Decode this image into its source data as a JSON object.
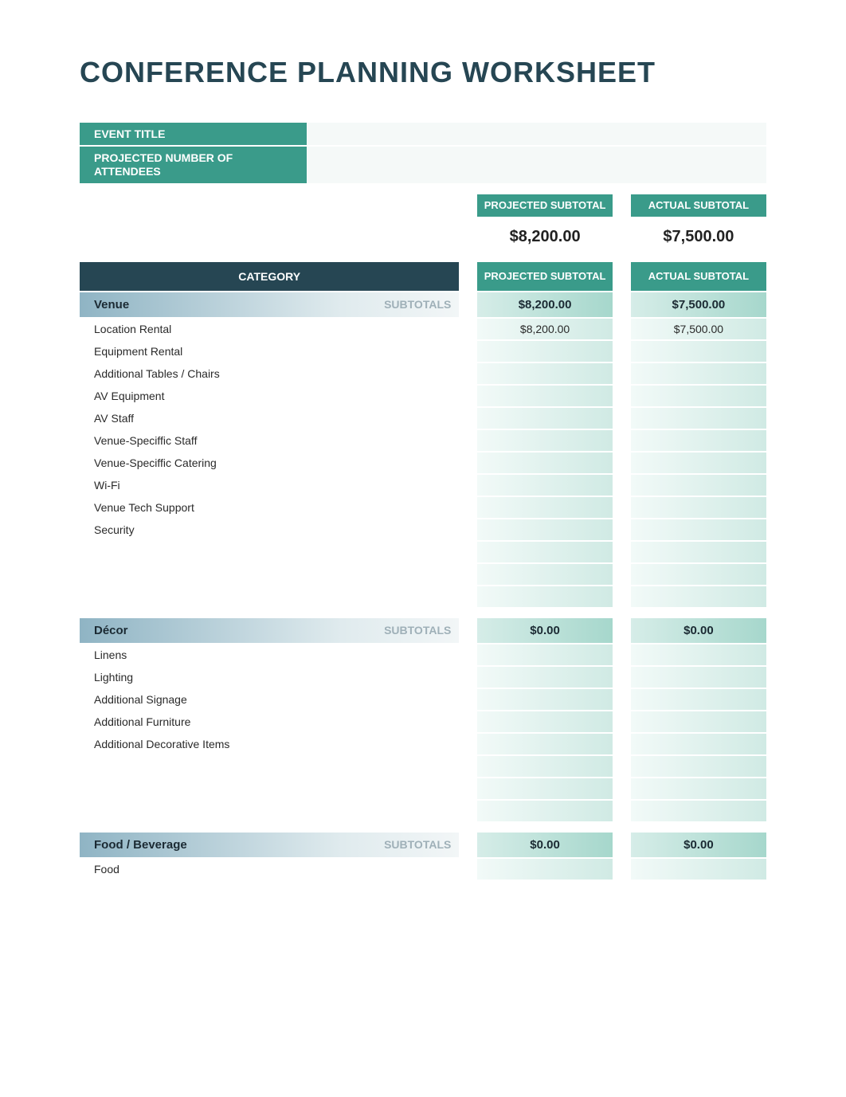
{
  "title": "CONFERENCE PLANNING WORKSHEET",
  "event_fields": {
    "title_label": "EVENT TITLE",
    "attendees_label": "PROJECTED NUMBER OF ATTENDEES"
  },
  "cols": {
    "projected": "PROJECTED SUBTOTAL",
    "actual": "ACTUAL SUBTOTAL",
    "category": "CATEGORY"
  },
  "grand_totals": {
    "projected": "$8,200.00",
    "actual": "$7,500.00"
  },
  "subtotals_label": "SUBTOTALS",
  "sections": [
    {
      "name": "Venue",
      "projected": "$8,200.00",
      "actual": "$7,500.00",
      "items": [
        {
          "name": "Location Rental",
          "projected": "$8,200.00",
          "actual": "$7,500.00"
        },
        {
          "name": "Equipment Rental",
          "projected": "",
          "actual": ""
        },
        {
          "name": "Additional Tables / Chairs",
          "projected": "",
          "actual": ""
        },
        {
          "name": "AV Equipment",
          "projected": "",
          "actual": ""
        },
        {
          "name": "AV Staff",
          "projected": "",
          "actual": ""
        },
        {
          "name": "Venue-Speciffic Staff",
          "projected": "",
          "actual": ""
        },
        {
          "name": "Venue-Speciffic Catering",
          "projected": "",
          "actual": ""
        },
        {
          "name": "Wi-Fi",
          "projected": "",
          "actual": ""
        },
        {
          "name": "Venue Tech Support",
          "projected": "",
          "actual": ""
        },
        {
          "name": "Security",
          "projected": "",
          "actual": ""
        }
      ],
      "blank_rows": 3
    },
    {
      "name": "Décor",
      "projected": "$0.00",
      "actual": "$0.00",
      "items": [
        {
          "name": "Linens",
          "projected": "",
          "actual": ""
        },
        {
          "name": "Lighting",
          "projected": "",
          "actual": ""
        },
        {
          "name": "Additional Signage",
          "projected": "",
          "actual": ""
        },
        {
          "name": "Additional Furniture",
          "projected": "",
          "actual": ""
        },
        {
          "name": "Additional Decorative Items",
          "projected": "",
          "actual": ""
        }
      ],
      "blank_rows": 3
    },
    {
      "name": "Food / Beverage",
      "projected": "$0.00",
      "actual": "$0.00",
      "items": [
        {
          "name": "Food",
          "projected": "",
          "actual": ""
        }
      ],
      "blank_rows": 0
    }
  ],
  "colors": {
    "title": "#264653",
    "teal_dark": "#264653",
    "teal": "#3a9b8a",
    "teal_light_start": "#d6ede8",
    "teal_light_end": "#a6d7cc",
    "slate_start": "#8fb4c4",
    "slate_end": "#e0ebee",
    "row_val_start": "#f2faf8",
    "row_val_end": "#d0eae4",
    "muted": "#9fb0b8"
  }
}
